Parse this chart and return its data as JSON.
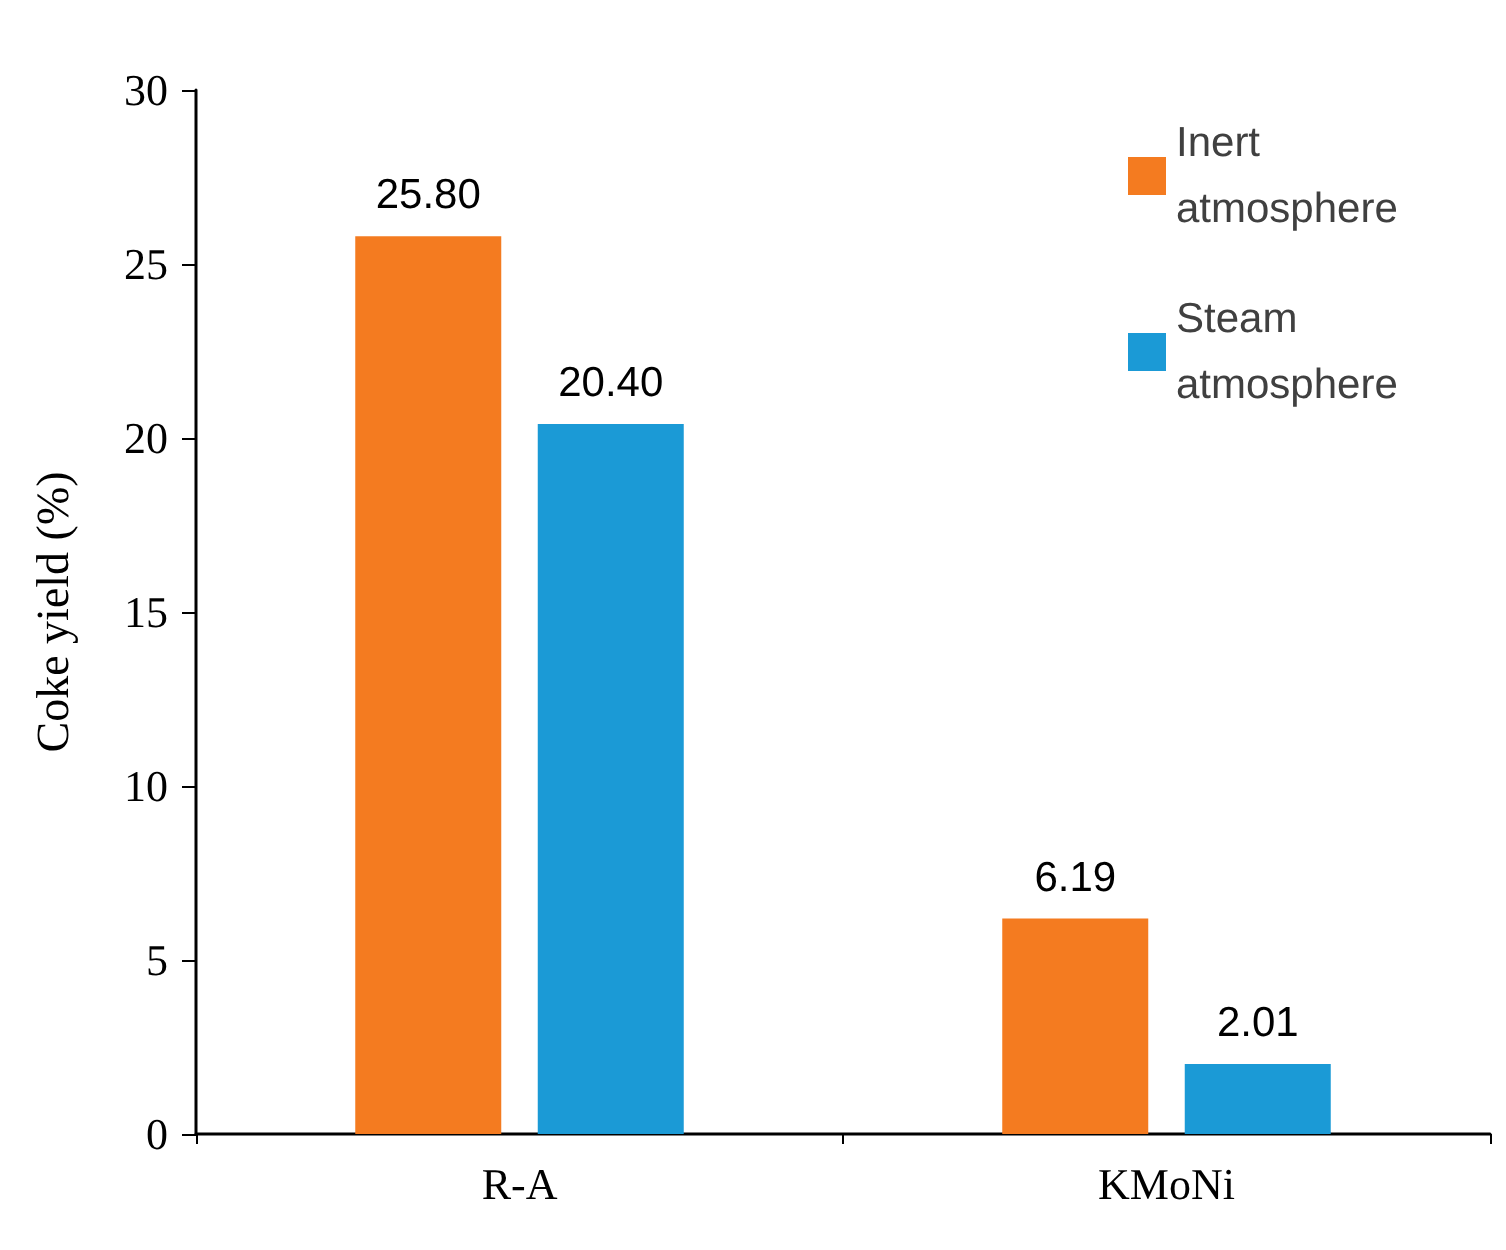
{
  "chart_data": {
    "type": "bar",
    "ylabel": "Coke yield (%)",
    "categories": [
      "R-A",
      "KMoNi"
    ],
    "series": [
      {
        "name": "Inert atmosphere",
        "color": "#f47b20",
        "values": [
          25.8,
          6.19
        ],
        "value_labels": [
          "25.80",
          "6.19"
        ]
      },
      {
        "name": "Steam atmosphere",
        "color": "#1b9ad6",
        "values": [
          20.4,
          2.01
        ],
        "value_labels": [
          "20.40",
          "2.01"
        ]
      }
    ],
    "ylim": [
      0,
      30
    ],
    "yticks": [
      0,
      5,
      10,
      15,
      20,
      25,
      30
    ],
    "grid": false,
    "legend": "top right"
  }
}
